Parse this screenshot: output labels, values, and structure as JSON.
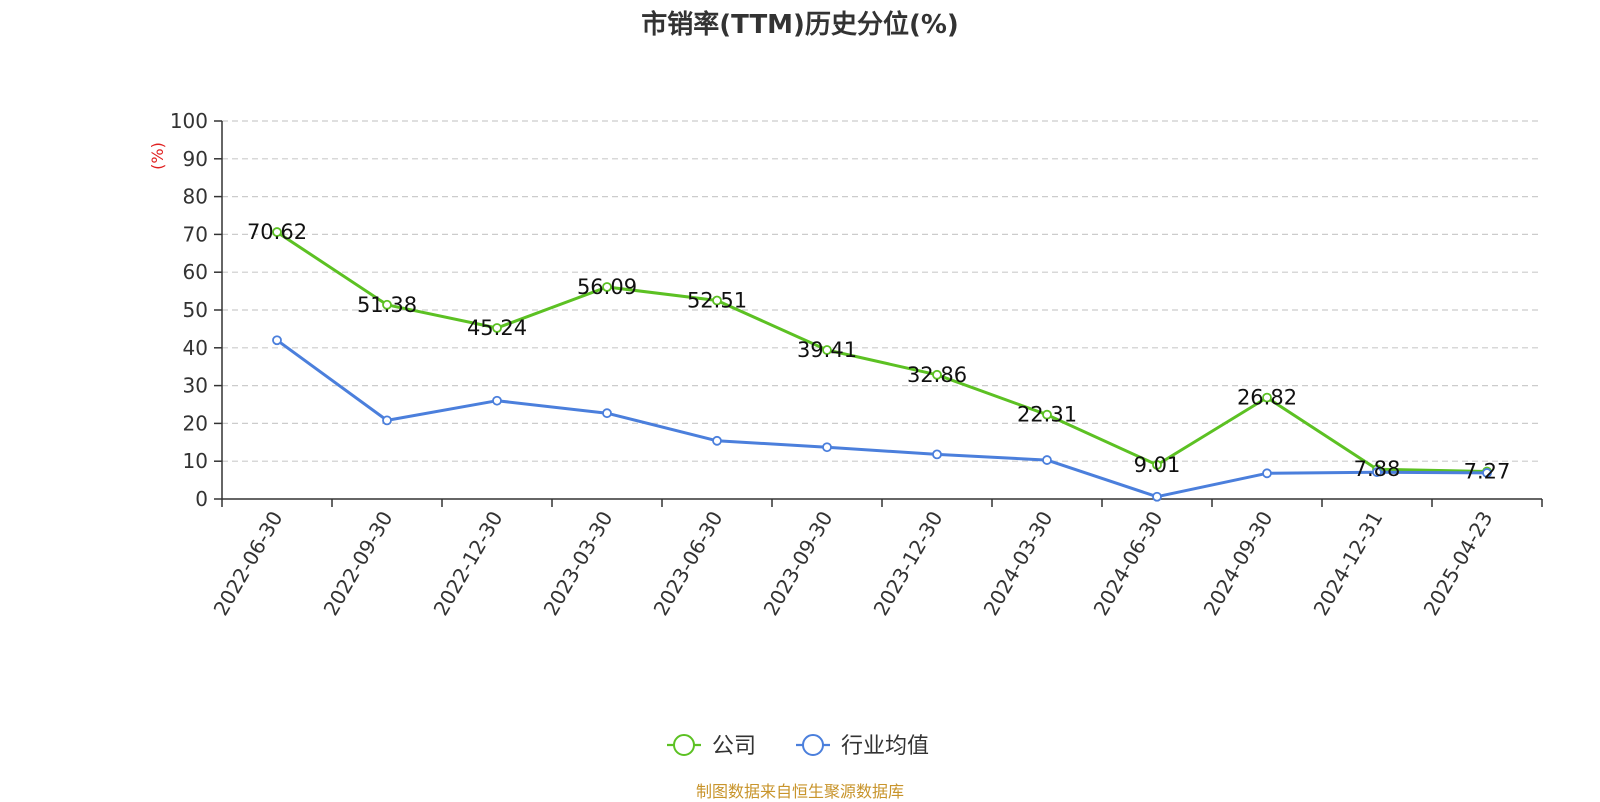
{
  "chart_data": {
    "type": "line",
    "title": "市销率(TTM)历史分位(%)",
    "ylabel": "(%)",
    "ylim": [
      0,
      100
    ],
    "yticks": [
      0,
      10,
      20,
      30,
      40,
      50,
      60,
      70,
      80,
      90,
      100
    ],
    "grid": true,
    "legend_position": "bottom",
    "categories": [
      "2022-06-30",
      "2022-09-30",
      "2022-12-30",
      "2023-03-30",
      "2023-06-30",
      "2023-09-30",
      "2023-12-30",
      "2024-03-30",
      "2024-06-30",
      "2024-09-30",
      "2024-12-31",
      "2025-04-23"
    ],
    "series": [
      {
        "name": "公司",
        "color": "#5cc123",
        "values": [
          70.62,
          51.38,
          45.24,
          56.09,
          52.51,
          39.41,
          32.86,
          22.31,
          9.01,
          26.82,
          7.88,
          7.27
        ],
        "labels": [
          "70.62",
          "51.38",
          "45.24",
          "56.09",
          "52.51",
          "39.41",
          "32.86",
          "22.31",
          "9.01",
          "26.82",
          "7.88",
          "7.27"
        ]
      },
      {
        "name": "行业均值",
        "color": "#4b7fdc",
        "values": [
          42.0,
          20.8,
          26.0,
          22.7,
          15.4,
          13.7,
          11.8,
          10.3,
          0.6,
          6.8,
          7.1,
          6.9
        ]
      }
    ],
    "ylabel_color": "#e02020"
  },
  "footer": {
    "source": "制图数据来自恒生聚源数据库"
  }
}
